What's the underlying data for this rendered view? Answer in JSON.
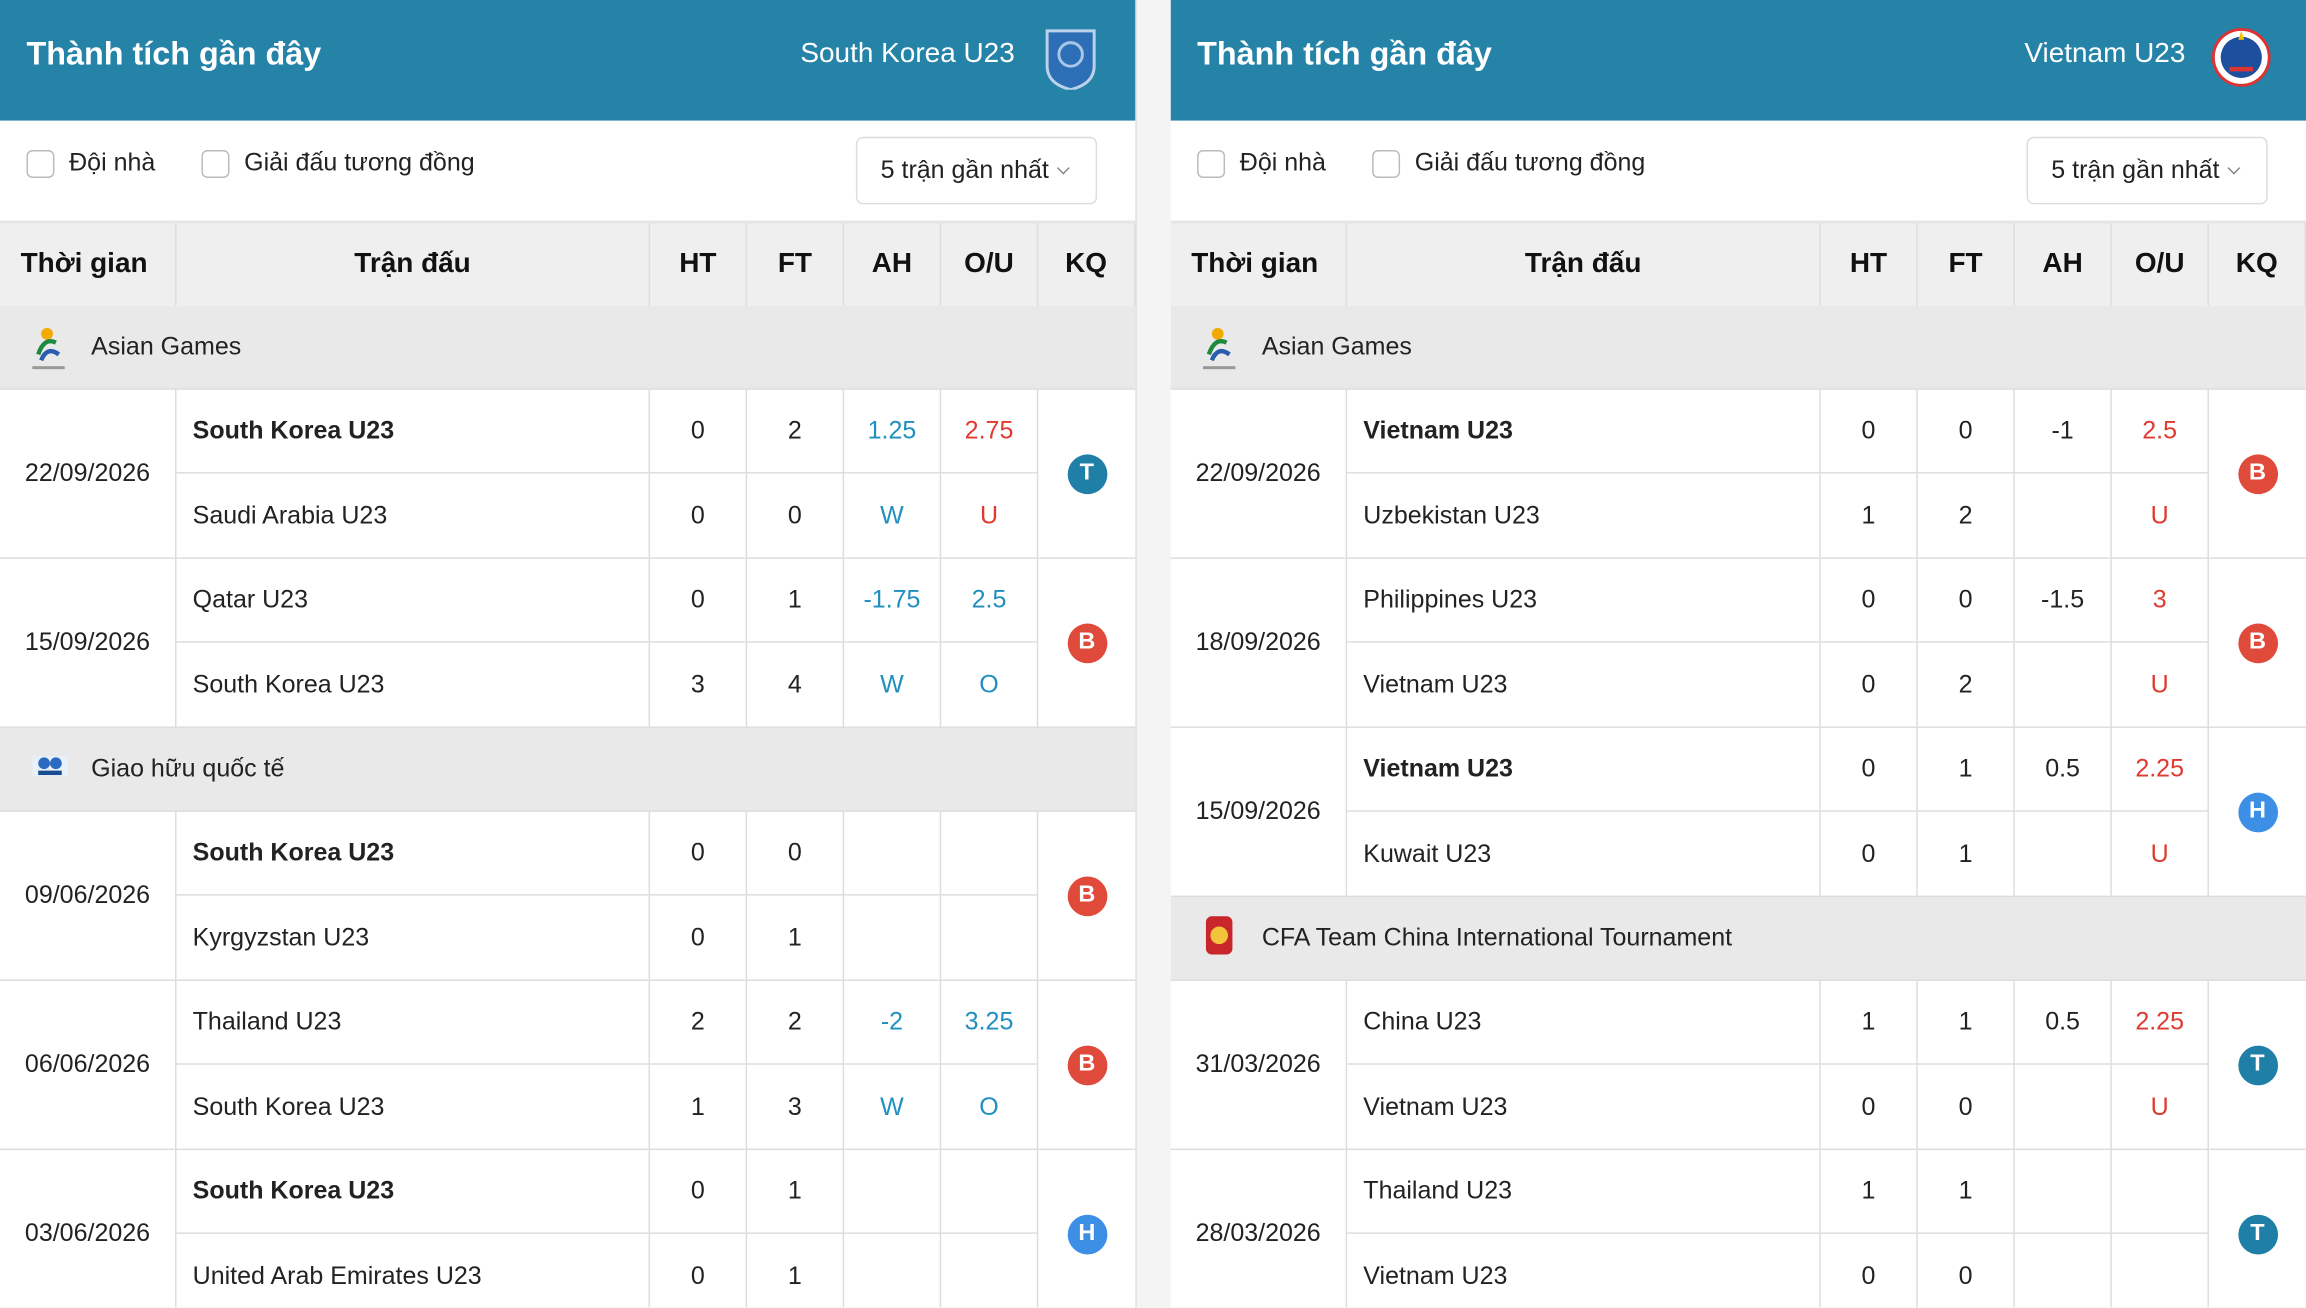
{
  "panels": [
    {
      "title": "Thành tích gần đây",
      "team": "South Korea U23",
      "filters": [
        "Đội nhà",
        "Giải đấu tương đồng"
      ],
      "dropdown": "5 trận gần nhất",
      "columns": [
        "Thời gian",
        "Trận đấu",
        "HT",
        "FT",
        "AH",
        "O/U",
        "KQ"
      ],
      "groups": [
        {
          "league": "Asian Games",
          "matches": [
            {
              "date": "22/09/2026",
              "result": "T",
              "result_color": "#1f7fa6",
              "ah_color": "#1f8fc0",
              "ou_color": "#e0392f",
              "rows": [
                {
                  "team": "South Korea U23",
                  "bold": true,
                  "ht": "0",
                  "ft": "2",
                  "ah": "1.25",
                  "ou": "2.75"
                },
                {
                  "team": "Saudi Arabia U23",
                  "bold": false,
                  "ht": "0",
                  "ft": "0",
                  "ah": "W",
                  "ou": "U"
                }
              ]
            },
            {
              "date": "15/09/2026",
              "result": "B",
              "result_color": "#e04a3a",
              "ah_color": "#1f8fc0",
              "ou_color": "#1f8fc0",
              "rows": [
                {
                  "team": "Qatar U23",
                  "bold": false,
                  "ht": "0",
                  "ft": "1",
                  "ah": "-1.75",
                  "ou": "2.5"
                },
                {
                  "team": "South Korea U23",
                  "bold": false,
                  "ht": "3",
                  "ft": "4",
                  "ah": "W",
                  "ou": "O"
                }
              ]
            }
          ]
        },
        {
          "league": "Giao hữu quốc tế",
          "matches": [
            {
              "date": "09/06/2026",
              "result": "B",
              "result_color": "#e04a3a",
              "ah_color": "#1f8fc0",
              "ou_color": "#1f8fc0",
              "rows": [
                {
                  "team": "South Korea U23",
                  "bold": true,
                  "ht": "0",
                  "ft": "0"
                },
                {
                  "team": "Kyrgyzstan U23",
                  "bold": false,
                  "ht": "0",
                  "ft": "1"
                }
              ]
            },
            {
              "date": "06/06/2026",
              "result": "B",
              "result_color": "#e04a3a",
              "ah_color": "#1f8fc0",
              "ou_color": "#1f8fc0",
              "rows": [
                {
                  "team": "Thailand U23",
                  "bold": false,
                  "ht": "2",
                  "ft": "2",
                  "ah": "-2",
                  "ou": "3.25"
                },
                {
                  "team": "South Korea U23",
                  "bold": false,
                  "ht": "1",
                  "ft": "3",
                  "ah": "W",
                  "ou": "O"
                }
              ]
            },
            {
              "date": "03/06/2026",
              "result": "H",
              "result_color": "#3d8fe6",
              "ah_color": "#1f8fc0",
              "ou_color": "#1f8fc0",
              "rows": [
                {
                  "team": "South Korea U23",
                  "bold": true,
                  "ht": "0",
                  "ft": "1"
                },
                {
                  "team": "United Arab Emirates U23",
                  "bold": false,
                  "ht": "0",
                  "ft": "1"
                }
              ]
            }
          ]
        }
      ]
    },
    {
      "title": "Thành tích gần đây",
      "team": "Vietnam U23",
      "filters": [
        "Đội nhà",
        "Giải đấu tương đồng"
      ],
      "dropdown": "5 trận gần nhất",
      "columns": [
        "Thời gian",
        "Trận đấu",
        "HT",
        "FT",
        "AH",
        "O/U",
        "KQ"
      ],
      "groups": [
        {
          "league": "Asian Games",
          "matches": [
            {
              "date": "22/09/2026",
              "result": "B",
              "result_color": "#e04a3a",
              "ah_color": "#222222",
              "ou_color": "#e0392f",
              "rows": [
                {
                  "team": "Vietnam U23",
                  "bold": true,
                  "ht": "0",
                  "ft": "0",
                  "ah": "-1",
                  "ou": "2.5"
                },
                {
                  "team": "Uzbekistan U23",
                  "bold": false,
                  "ht": "1",
                  "ft": "2",
                  "ou": "U"
                }
              ]
            },
            {
              "date": "18/09/2026",
              "result": "B",
              "result_color": "#e04a3a",
              "ah_color": "#222222",
              "ou_color": "#e0392f",
              "rows": [
                {
                  "team": "Philippines U23",
                  "bold": false,
                  "ht": "0",
                  "ft": "0",
                  "ah": "-1.5",
                  "ou": "3"
                },
                {
                  "team": "Vietnam U23",
                  "bold": false,
                  "ht": "0",
                  "ft": "2",
                  "ou": "U"
                }
              ]
            },
            {
              "date": "15/09/2026",
              "result": "H",
              "result_color": "#3d8fe6",
              "ah_color": "#222222",
              "ou_color": "#e0392f",
              "rows": [
                {
                  "team": "Vietnam U23",
                  "bold": true,
                  "ht": "0",
                  "ft": "1",
                  "ah": "0.5",
                  "ou": "2.25"
                },
                {
                  "team": "Kuwait U23",
                  "bold": false,
                  "ht": "0",
                  "ft": "1",
                  "ou": "U"
                }
              ]
            }
          ]
        },
        {
          "league": "CFA Team China International Tournament",
          "matches": [
            {
              "date": "31/03/2026",
              "result": "T",
              "result_color": "#1f7fa6",
              "ah_color": "#222222",
              "ou_color": "#e0392f",
              "rows": [
                {
                  "team": "China U23",
                  "bold": false,
                  "ht": "1",
                  "ft": "1",
                  "ah": "0.5",
                  "ou": "2.25"
                },
                {
                  "team": "Vietnam U23",
                  "bold": false,
                  "ht": "0",
                  "ft": "0",
                  "ou": "U"
                }
              ]
            },
            {
              "date": "28/03/2026",
              "result": "T",
              "result_color": "#1f7fa6",
              "ah_color": "#222222",
              "ou_color": "#e0392f",
              "rows": [
                {
                  "team": "Thailand U23",
                  "bold": false,
                  "ht": "1",
                  "ft": "1"
                },
                {
                  "team": "Vietnam U23",
                  "bold": false,
                  "ht": "0",
                  "ft": "0"
                }
              ]
            }
          ]
        }
      ]
    }
  ]
}
